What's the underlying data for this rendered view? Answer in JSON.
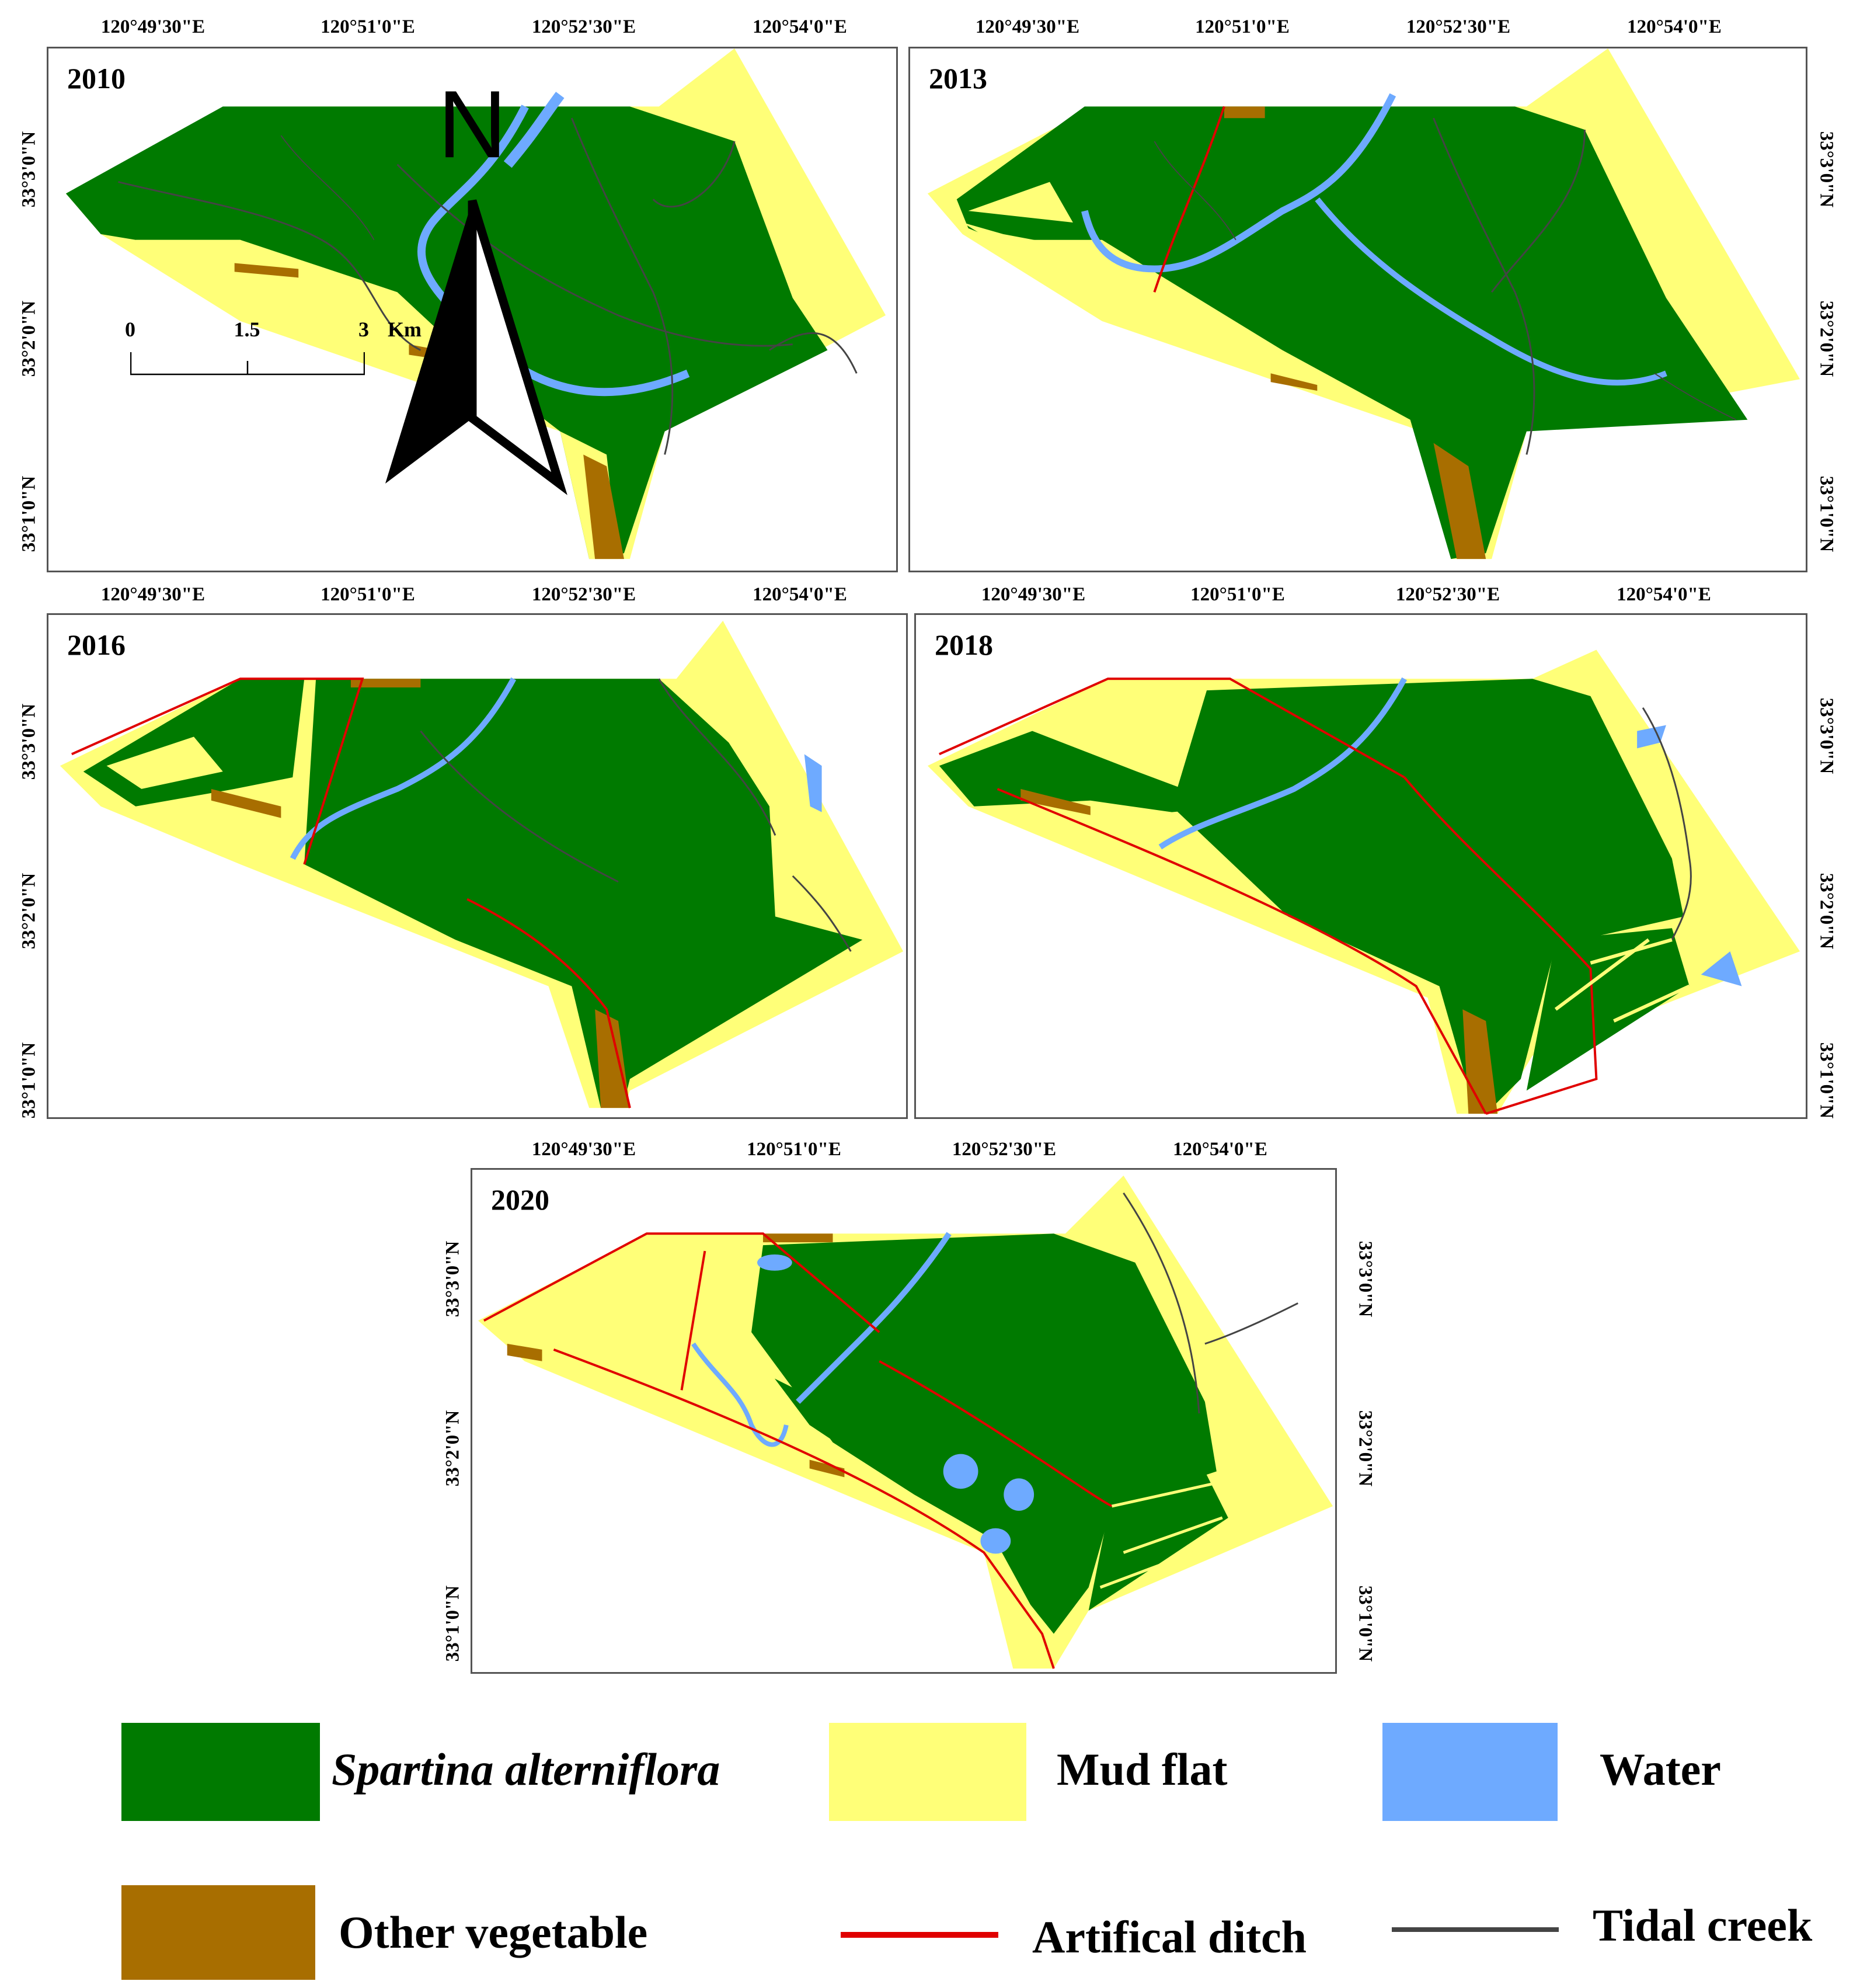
{
  "panels": [
    {
      "year": "2010",
      "lons": [
        "120°49'30\"E",
        "120°51'0\"E",
        "120°52'30\"E",
        "120°54'0\"E"
      ],
      "lats_left": [
        "33°3'0\"N",
        "33°2'0\"N",
        "33°1'0\"N"
      ],
      "lats_right": []
    },
    {
      "year": "2013",
      "lons": [
        "120°49'30\"E",
        "120°51'0\"E",
        "120°52'30\"E",
        "120°54'0\"E"
      ],
      "lats_left": [],
      "lats_right": [
        "33°3'0\"N",
        "33°2'0\"N",
        "33°1'0\"N"
      ]
    },
    {
      "year": "2016",
      "lons": [
        "120°49'30\"E",
        "120°51'0\"E",
        "120°52'30\"E",
        "120°54'0\"E"
      ],
      "lats_left": [
        "33°3'0\"N",
        "33°2'0\"N",
        "33°1'0\"N"
      ],
      "lats_right": []
    },
    {
      "year": "2018",
      "lons": [
        "120°49'30\"E",
        "120°51'0\"E",
        "120°52'30\"E",
        "120°54'0\"E"
      ],
      "lats_left": [],
      "lats_right": [
        "33°3'0\"N",
        "33°2'0\"N",
        "33°1'0\"N"
      ]
    },
    {
      "year": "2020",
      "lons": [
        "120°49'30\"E",
        "120°51'0\"E",
        "120°52'30\"E",
        "120°54'0\"E"
      ],
      "lats_left": [
        "33°3'0\"N",
        "33°2'0\"N",
        "33°1'0\"N"
      ],
      "lats_right": [
        "33°3'0\"N",
        "33°2'0\"N",
        "33°1'0\"N"
      ]
    }
  ],
  "north_arrow": {
    "label": "N"
  },
  "scale_bar": {
    "ticks": [
      "0",
      "1.5",
      "3"
    ],
    "unit": "Km"
  },
  "legend": [
    {
      "label": "Spartina alterniflora",
      "color": "#007a00",
      "kind": "box",
      "italic": true
    },
    {
      "label": "Mud flat",
      "color": "#ffff78",
      "kind": "box",
      "italic": false
    },
    {
      "label": "Water",
      "color": "#6eaaff",
      "kind": "box",
      "italic": false
    },
    {
      "label": "Other vegetable",
      "color": "#a86e00",
      "kind": "box",
      "italic": false
    },
    {
      "label": "Artifical ditch",
      "color": "#e00000",
      "kind": "line",
      "italic": false
    },
    {
      "label": "Tidal creek",
      "color": "#444444",
      "kind": "line",
      "italic": false
    }
  ],
  "colors": {
    "spartina": "#007a00",
    "mud": "#ffff78",
    "water": "#6eaaff",
    "other_veg": "#a86e00",
    "ditch": "#e00000",
    "creek": "#444444",
    "frame": "#555555"
  }
}
